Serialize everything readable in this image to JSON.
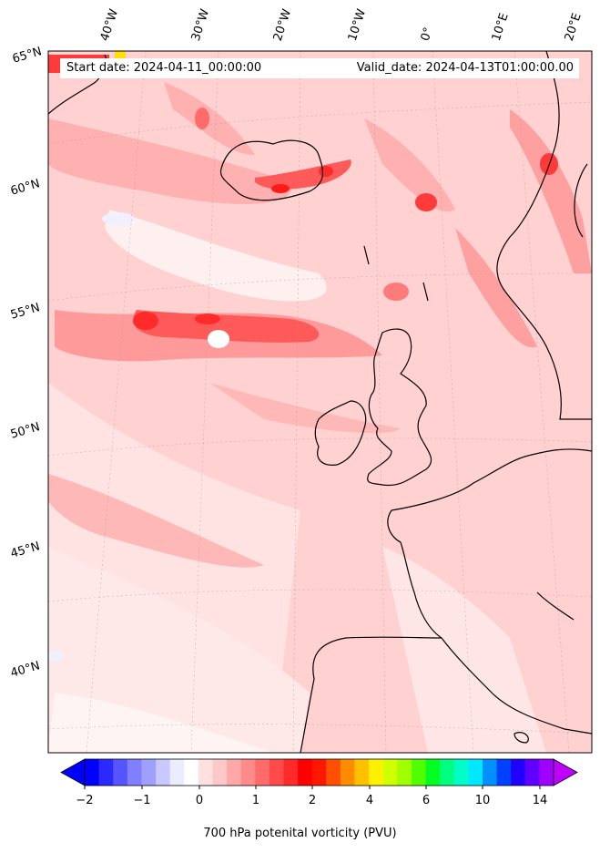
{
  "map": {
    "start_date": "Start date: 2024-04-11_00:00:00",
    "valid_date": "Valid_date: 2024-04-13T01:00:00.00",
    "longitude_labels": [
      "40°W",
      "30°W",
      "20°W",
      "10°W",
      "0°",
      "10°E",
      "20°E"
    ],
    "latitude_labels": [
      "65°N",
      "60°N",
      "55°N",
      "50°N",
      "45°N",
      "40°N"
    ],
    "field": "700 hPa potential vorticity",
    "colors": {
      "coastline": "#000000",
      "background_low_pv": "#ffd1d1",
      "high_pv": "#ff1a1a"
    }
  },
  "colorbar": {
    "label": "700 hPa potenital vorticity (PVU)",
    "tick_labels": [
      "−2",
      "−1",
      "0",
      "1",
      "2",
      "4",
      "6",
      "10",
      "14"
    ],
    "colors": [
      "#0000ff",
      "#2a2aff",
      "#5555ff",
      "#7f7fff",
      "#9f9fff",
      "#c8c8ff",
      "#ececff",
      "#ffffff",
      "#ffe0e0",
      "#ffc8c8",
      "#ffa8a8",
      "#ff8a8a",
      "#ff6a6a",
      "#ff4a4a",
      "#ff2a2a",
      "#ff0000",
      "#ff1800",
      "#ff5000",
      "#ff8c00",
      "#ffc000",
      "#fff000",
      "#d0ff00",
      "#a0ff00",
      "#50ff00",
      "#00ff20",
      "#00ff80",
      "#00ffc8",
      "#00e8ff",
      "#0090ff",
      "#0040ff",
      "#2000ff",
      "#6000ff",
      "#a000ff"
    ],
    "extend_low_color": "#0000ff",
    "extend_high_color": "#c000ff"
  }
}
